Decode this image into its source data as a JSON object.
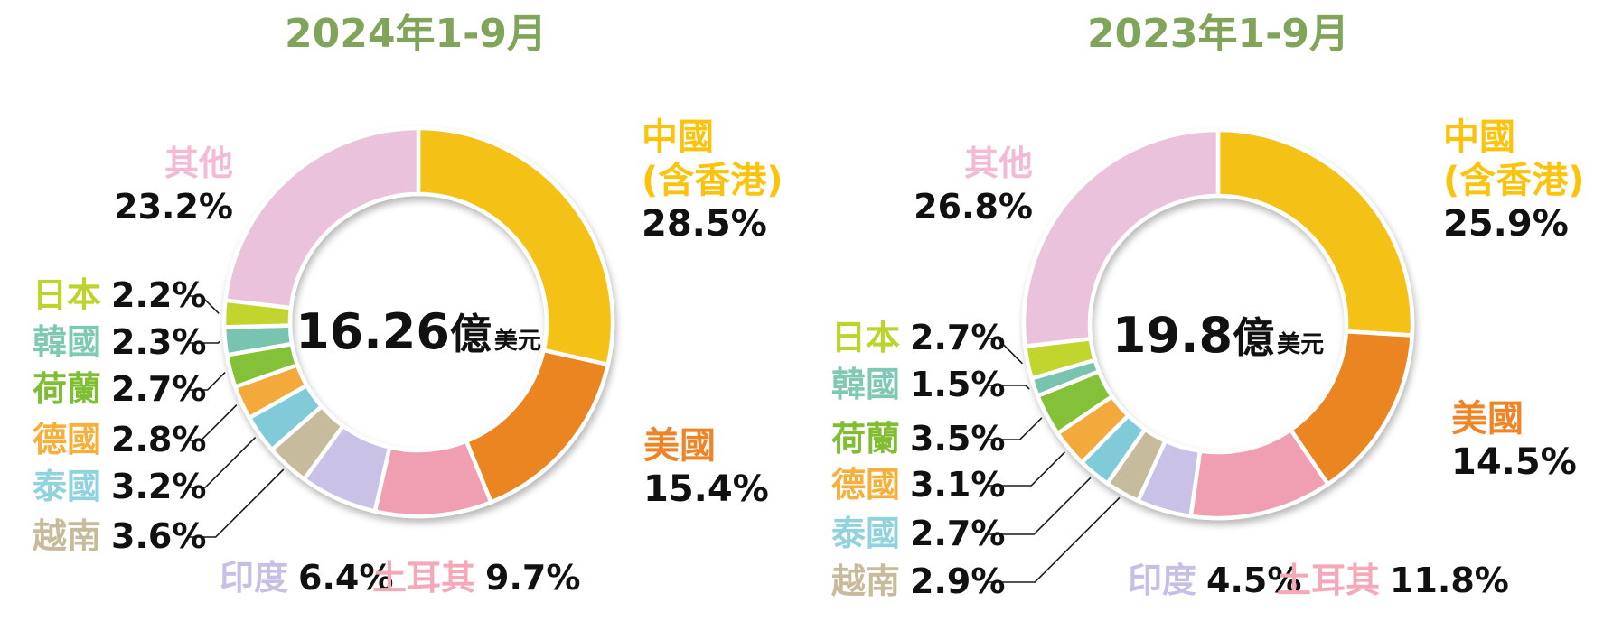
{
  "page": {
    "background": "#ffffff",
    "title_color": "#7FA45A",
    "percent_color": "#111111",
    "leader_line_color": "#1a1a1a"
  },
  "charts": [
    {
      "title": "2024年1-9月",
      "center_value": "16.26",
      "center_unit": "億",
      "center_currency": "美元",
      "slices": [
        {
          "key": "china",
          "name": "中國",
          "name2": "(含香港)",
          "value": 28.5,
          "pct": "28.5%",
          "color": "#F4C117",
          "label_color": "#FBC30B"
        },
        {
          "key": "usa",
          "name": "美國",
          "value": 15.4,
          "pct": "15.4%",
          "color": "#EA8524",
          "label_color": "#EE8426"
        },
        {
          "key": "turkey",
          "name": "土耳其",
          "value": 9.7,
          "pct": "9.7%",
          "color": "#EF9FB1",
          "label_color": "#F5A8B8"
        },
        {
          "key": "india",
          "name": "印度",
          "value": 6.4,
          "pct": "6.4%",
          "color": "#C9C2E6",
          "label_color": "#C9BFE6"
        },
        {
          "key": "vietnam",
          "name": "越南",
          "value": 3.6,
          "pct": "3.6%",
          "color": "#C7BB9E",
          "label_color": "#C8BB9B"
        },
        {
          "key": "thailand",
          "name": "泰國",
          "value": 3.2,
          "pct": "3.2%",
          "color": "#81CBD9",
          "label_color": "#92D1DE"
        },
        {
          "key": "germany",
          "name": "德國",
          "value": 2.8,
          "pct": "2.8%",
          "color": "#F3A93B",
          "label_color": "#F6AF3B"
        },
        {
          "key": "netherlands",
          "name": "荷蘭",
          "value": 2.7,
          "pct": "2.7%",
          "color": "#84C038",
          "label_color": "#7FBD33"
        },
        {
          "key": "korea",
          "name": "韓國",
          "value": 2.3,
          "pct": "2.3%",
          "color": "#78C4B0",
          "label_color": "#7FC8B4"
        },
        {
          "key": "japan",
          "name": "日本",
          "value": 2.2,
          "pct": "2.2%",
          "color": "#C1D52F",
          "label_color": "#BED32B"
        },
        {
          "key": "others",
          "name": "其他",
          "value": 23.2,
          "pct": "23.2%",
          "color": "#EAC2DC",
          "label_color": "#F3BAD8"
        }
      ]
    },
    {
      "title": "2023年1-9月",
      "center_value": "19.8",
      "center_unit": "億",
      "center_currency": "美元",
      "slices": [
        {
          "key": "china",
          "name": "中國",
          "name2": "(含香港)",
          "value": 25.9,
          "pct": "25.9%",
          "color": "#F4C117",
          "label_color": "#FBC30B"
        },
        {
          "key": "usa",
          "name": "美國",
          "value": 14.5,
          "pct": "14.5%",
          "color": "#EA8524",
          "label_color": "#EE8426"
        },
        {
          "key": "turkey",
          "name": "土耳其",
          "value": 11.8,
          "pct": "11.8%",
          "color": "#EF9FB1",
          "label_color": "#F5A8B8"
        },
        {
          "key": "india",
          "name": "印度",
          "value": 4.5,
          "pct": "4.5%",
          "color": "#C9C2E6",
          "label_color": "#C9BFE6"
        },
        {
          "key": "vietnam",
          "name": "越南",
          "value": 2.9,
          "pct": "2.9%",
          "color": "#C7BB9E",
          "label_color": "#C8BB9B"
        },
        {
          "key": "thailand",
          "name": "泰國",
          "value": 2.7,
          "pct": "2.7%",
          "color": "#81CBD9",
          "label_color": "#92D1DE"
        },
        {
          "key": "germany",
          "name": "德國",
          "value": 3.1,
          "pct": "3.1%",
          "color": "#F3A93B",
          "label_color": "#F6AF3B"
        },
        {
          "key": "netherlands",
          "name": "荷蘭",
          "value": 3.5,
          "pct": "3.5%",
          "color": "#84C038",
          "label_color": "#7FBD33"
        },
        {
          "key": "korea",
          "name": "韓國",
          "value": 1.5,
          "pct": "1.5%",
          "color": "#78C4B0",
          "label_color": "#7FC8B4"
        },
        {
          "key": "japan",
          "name": "日本",
          "value": 2.7,
          "pct": "2.7%",
          "color": "#C1D52F",
          "label_color": "#BED32B"
        },
        {
          "key": "others",
          "name": "其他",
          "value": 26.8,
          "pct": "26.8%",
          "color": "#EAC2DC",
          "label_color": "#F3BAD8"
        }
      ]
    }
  ],
  "chart_data": [
    {
      "type": "pie",
      "subtype": "donut",
      "title": "2024年1-9月",
      "center_label": "16.26億美元",
      "categories": [
        "中國(含香港)",
        "美國",
        "土耳其",
        "印度",
        "越南",
        "泰國",
        "德國",
        "荷蘭",
        "韓國",
        "日本",
        "其他"
      ],
      "values": [
        28.5,
        15.4,
        9.7,
        6.4,
        3.6,
        3.2,
        2.8,
        2.7,
        2.3,
        2.2,
        23.2
      ],
      "unit": "%",
      "start_angle": "12-o-clock",
      "direction": "clockwise",
      "legend_position": "around-slices"
    },
    {
      "type": "pie",
      "subtype": "donut",
      "title": "2023年1-9月",
      "center_label": "19.8億美元",
      "categories": [
        "中國(含香港)",
        "美國",
        "土耳其",
        "印度",
        "越南",
        "泰國",
        "德國",
        "荷蘭",
        "韓國",
        "日本",
        "其他"
      ],
      "values": [
        25.9,
        14.5,
        11.8,
        4.5,
        2.9,
        2.7,
        3.1,
        3.5,
        1.5,
        2.7,
        26.8
      ],
      "unit": "%",
      "start_angle": "12-o-clock",
      "direction": "clockwise",
      "legend_position": "around-slices"
    }
  ]
}
